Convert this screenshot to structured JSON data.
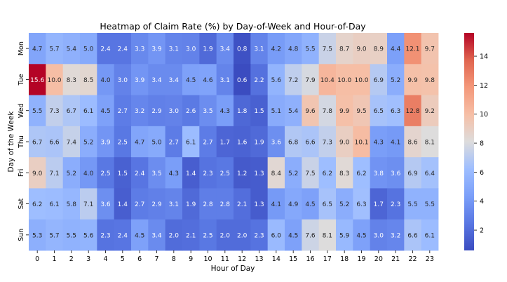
{
  "chart_data": {
    "type": "heatmap",
    "title": "Heatmap of Claim Rate (%) by Day-of-Week and Hour-of-Day",
    "xlabel": "Hour of Day",
    "ylabel": "Day of the Week",
    "x": [
      "0",
      "1",
      "2",
      "3",
      "4",
      "5",
      "6",
      "7",
      "8",
      "9",
      "10",
      "11",
      "12",
      "13",
      "14",
      "15",
      "16",
      "17",
      "18",
      "19",
      "20",
      "21",
      "22",
      "23"
    ],
    "y": [
      "Mon",
      "Tue",
      "Wed",
      "Thu",
      "Fri",
      "Sat",
      "Sun"
    ],
    "values": [
      [
        4.7,
        5.7,
        5.4,
        5.0,
        2.4,
        2.4,
        3.3,
        3.9,
        3.1,
        3.0,
        1.9,
        3.4,
        0.8,
        3.1,
        4.2,
        4.8,
        5.5,
        7.5,
        8.7,
        9.0,
        8.9,
        4.4,
        12.1,
        9.7
      ],
      [
        15.6,
        10.0,
        8.3,
        8.5,
        4.0,
        3.0,
        3.9,
        3.4,
        3.4,
        4.5,
        4.6,
        3.1,
        0.6,
        2.2,
        5.6,
        7.2,
        7.9,
        10.4,
        10.0,
        10.0,
        6.9,
        5.2,
        9.9,
        9.8
      ],
      [
        5.5,
        7.3,
        6.7,
        6.1,
        4.5,
        2.7,
        3.2,
        2.9,
        3.0,
        2.6,
        3.5,
        4.3,
        1.8,
        1.5,
        5.1,
        5.4,
        9.6,
        7.8,
        9.9,
        9.5,
        6.5,
        6.3,
        12.8,
        9.2
      ],
      [
        6.7,
        6.6,
        7.4,
        5.2,
        3.9,
        2.5,
        4.7,
        5.0,
        2.7,
        6.1,
        2.7,
        1.7,
        1.6,
        1.9,
        3.6,
        6.8,
        6.6,
        7.3,
        9.0,
        10.1,
        4.3,
        4.1,
        8.6,
        8.1
      ],
      [
        9.0,
        7.1,
        5.2,
        4.0,
        2.5,
        1.5,
        2.4,
        3.5,
        4.3,
        1.4,
        2.3,
        2.5,
        1.2,
        1.3,
        8.4,
        5.2,
        7.5,
        6.2,
        8.3,
        6.2,
        3.8,
        3.6,
        6.9,
        6.4
      ],
      [
        6.2,
        6.1,
        5.8,
        7.1,
        3.6,
        1.4,
        2.7,
        2.9,
        3.1,
        1.9,
        2.8,
        2.8,
        2.1,
        1.3,
        4.1,
        4.9,
        4.5,
        6.5,
        5.2,
        6.3,
        1.7,
        2.3,
        5.5,
        5.5
      ],
      [
        5.3,
        5.7,
        5.5,
        5.6,
        2.3,
        2.4,
        4.5,
        3.4,
        2.0,
        2.1,
        2.5,
        2.0,
        2.0,
        2.3,
        6.0,
        4.5,
        7.6,
        8.1,
        5.9,
        4.5,
        3.0,
        3.2,
        6.6,
        6.1
      ]
    ],
    "colormap": "coolwarm",
    "vmin": 0.6,
    "vmax": 15.6,
    "colorbar_ticks": [
      2,
      4,
      6,
      8,
      10,
      12,
      14
    ],
    "legend": "colorbar-right",
    "grid": false
  }
}
